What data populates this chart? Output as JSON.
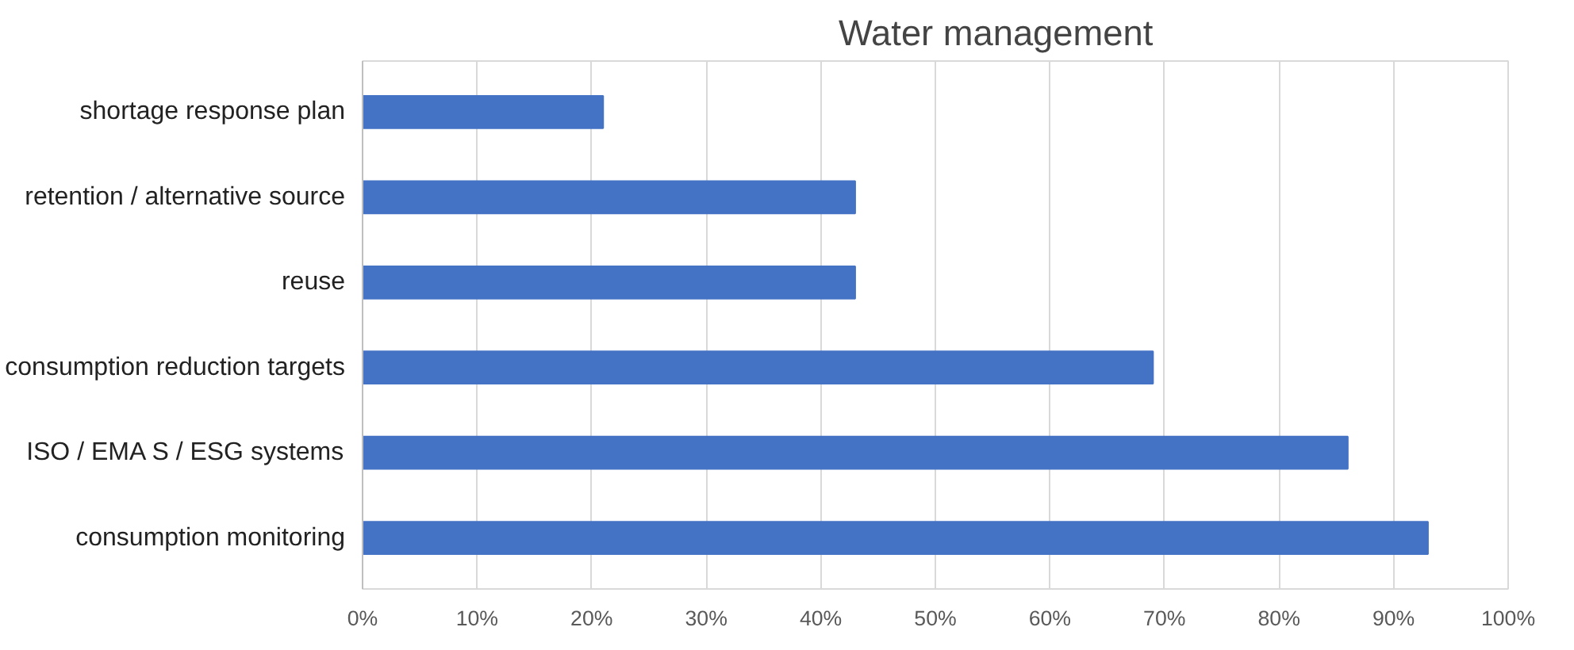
{
  "chart_data": {
    "type": "bar",
    "orientation": "horizontal",
    "title": "Water management",
    "categories": [
      "shortage response plan",
      "retention / alternative source",
      "reuse",
      "consumption reduction targets",
      "ISO / EMA S / ESG systems",
      "consumption monitoring"
    ],
    "values": [
      0.21,
      0.43,
      0.43,
      0.69,
      0.86,
      0.93
    ],
    "color": "#4472c4",
    "xlim": [
      0,
      1
    ],
    "xticks": [
      {
        "value": 0,
        "label": "0%"
      },
      {
        "value": 0.1,
        "label": "10%"
      },
      {
        "value": 0.2,
        "label": "20%"
      },
      {
        "value": 0.3,
        "label": "30%"
      },
      {
        "value": 0.4,
        "label": "40%"
      },
      {
        "value": 0.5,
        "label": "50%"
      },
      {
        "value": 0.6,
        "label": "60%"
      },
      {
        "value": 0.7,
        "label": "70%"
      },
      {
        "value": 0.8,
        "label": "80%"
      },
      {
        "value": 0.9,
        "label": "90%"
      },
      {
        "value": 1,
        "label": "100%"
      }
    ],
    "grid": "x"
  }
}
